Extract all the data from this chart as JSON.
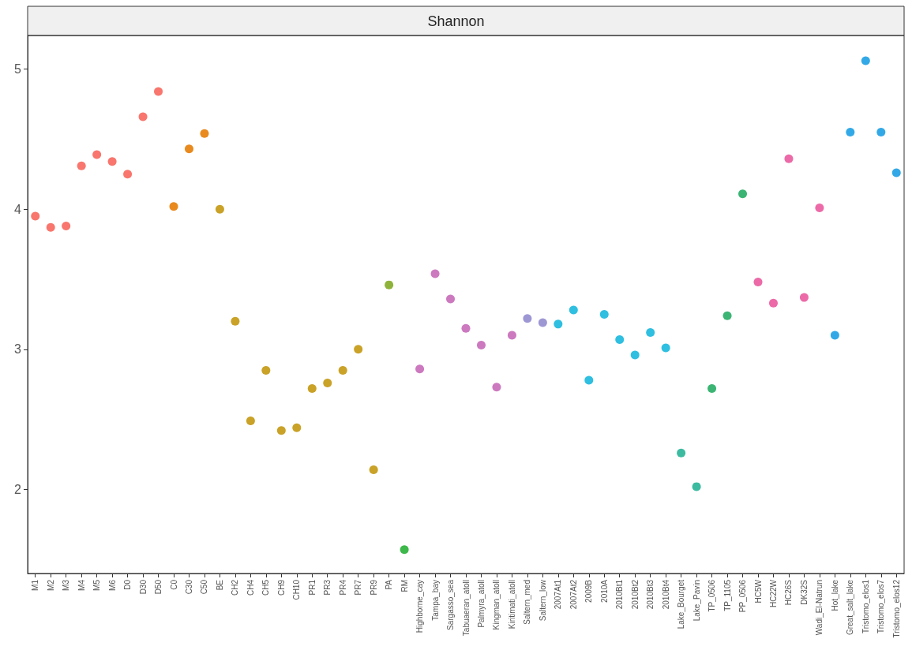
{
  "chart_data": {
    "type": "scatter",
    "title": "Shannon",
    "categories": [
      "M1",
      "M2",
      "M3",
      "M4",
      "M5",
      "M6",
      "D0",
      "D30",
      "D50",
      "C0",
      "C30",
      "C50",
      "BE",
      "CH2",
      "CH4",
      "CH5",
      "CH9",
      "CH10",
      "PR1",
      "PR3",
      "PR4",
      "PR7",
      "PR9",
      "PA",
      "RM",
      "Highborne_cay",
      "Tampa_bay",
      "Sargasso_sea",
      "Tabuaeran_atoll",
      "Palmyra_atoll",
      "Kingman_atoll",
      "Kiritimati_atoll",
      "Saltern_med",
      "Saltern_low",
      "2007At1",
      "2007At2",
      "2009B",
      "2010A",
      "2010Bt1",
      "2010Bt2",
      "2010Bt3",
      "2010Bt4",
      "Lake_Bourget",
      "Lake_Pavin",
      "TP_0506",
      "TP_1105",
      "PP_0506",
      "HC5W",
      "HC22W",
      "HC26S",
      "DK32S",
      "Wadi_El-Natrun",
      "Hot_lake",
      "Great_salt_lake",
      "Tristomo_elos1",
      "Tristomo_elos7",
      "Tristomo_elos12"
    ],
    "values": [
      3.95,
      3.87,
      3.88,
      4.31,
      4.39,
      4.34,
      4.25,
      4.66,
      4.84,
      4.02,
      4.43,
      4.54,
      4.0,
      3.2,
      2.49,
      2.85,
      2.42,
      2.44,
      2.72,
      2.76,
      2.85,
      3.0,
      2.14,
      3.46,
      1.57,
      2.86,
      3.54,
      3.36,
      3.15,
      3.03,
      2.73,
      3.1,
      3.22,
      3.19,
      3.18,
      3.28,
      2.78,
      3.25,
      3.07,
      2.96,
      3.12,
      3.01,
      2.26,
      2.02,
      2.72,
      3.24,
      4.11,
      3.48,
      3.33,
      4.36,
      3.37,
      4.01,
      3.1,
      4.55,
      5.06,
      4.55,
      4.26
    ],
    "colors": [
      "#f8766d",
      "#f8766d",
      "#f8766d",
      "#f8766d",
      "#f8766d",
      "#f8766d",
      "#f8766d",
      "#f8766d",
      "#f8766d",
      "#e88a1e",
      "#e88a1e",
      "#e88a1e",
      "#c9a227",
      "#c9a227",
      "#c9a227",
      "#c9a227",
      "#c9a227",
      "#c9a227",
      "#c9a227",
      "#c9a227",
      "#c9a227",
      "#c9a227",
      "#c9a227",
      "#8fb33a",
      "#3db84a",
      "#cc79bf",
      "#cc79bf",
      "#cc79bf",
      "#cc79bf",
      "#cc79bf",
      "#cc79bf",
      "#cc79bf",
      "#9d97d4",
      "#9d97d4",
      "#2fbfe0",
      "#2fbfe0",
      "#2fbfe0",
      "#2fbfe0",
      "#2fbfe0",
      "#2fbfe0",
      "#2fbfe0",
      "#2fbfe0",
      "#3cbba0",
      "#3cbba0",
      "#3cb574",
      "#3cb574",
      "#3cb574",
      "#ec6aa8",
      "#ec6aa8",
      "#ec6aa8",
      "#ec6aa8",
      "#ec6aa8",
      "#32a9e6",
      "#32a9e6",
      "#32a9e6",
      "#32a9e6",
      "#32a9e6"
    ],
    "ylim": [
      1.4,
      5.24
    ],
    "yticks": [
      2,
      3,
      4,
      5
    ],
    "grid": false,
    "marker": "circle"
  }
}
